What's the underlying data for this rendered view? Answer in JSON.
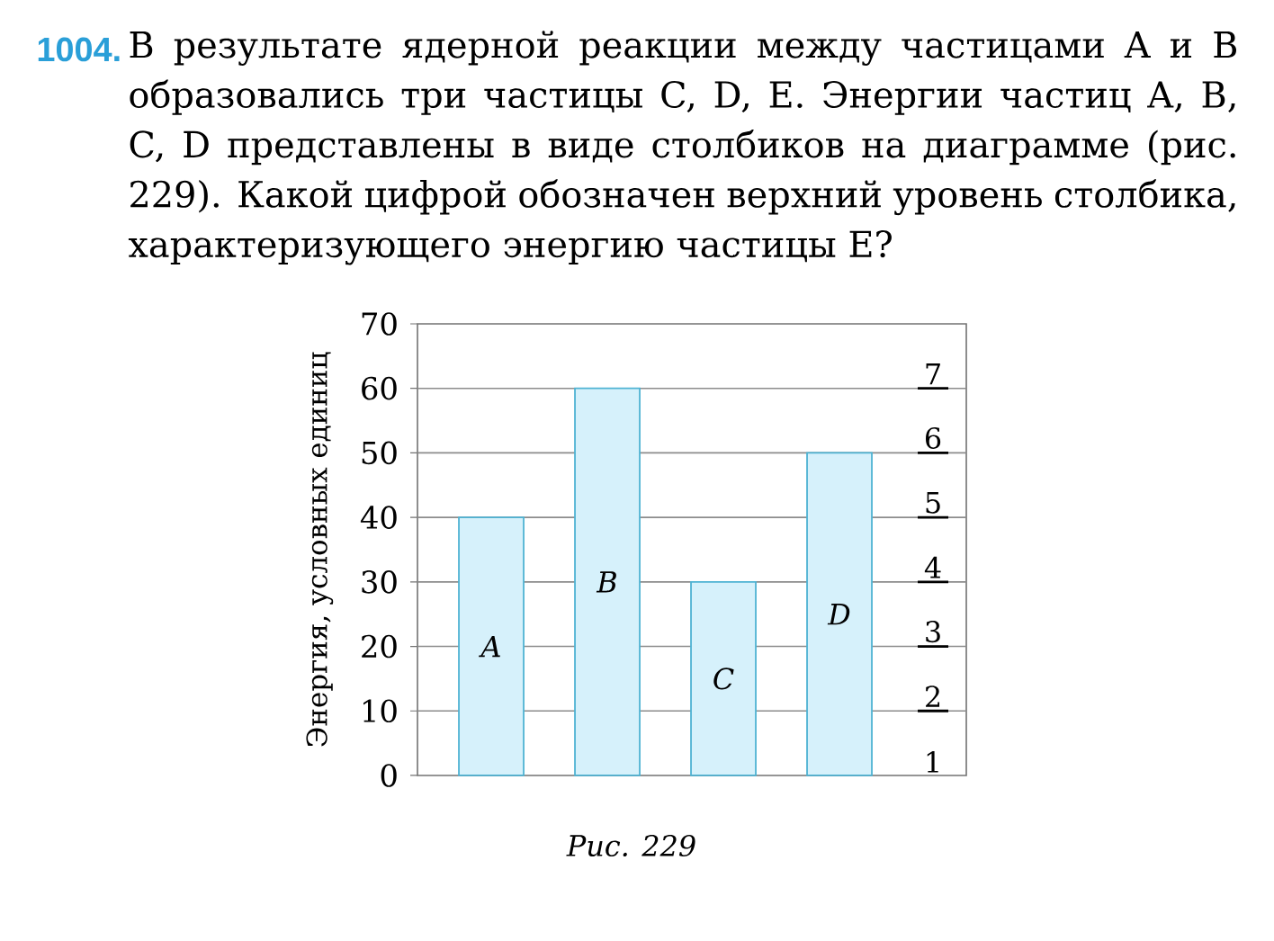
{
  "chart_data": {
    "type": "bar",
    "title": "1004.",
    "subtitle": "В результате ядерной реакции между частицами A и B образовались три частицы C, D, E. Энергии частиц A, B, C, D представлены в виде столбиков на диаграмме (рис. 229). Какой цифрой обозначен верхний уровень столбика, характеризующего энергию частицы E?",
    "ylabel": "Энергия, условных единиц",
    "categories": [
      "A",
      "B",
      "C",
      "D"
    ],
    "values": [
      40,
      60,
      30,
      50
    ],
    "color": "#d6f1fb",
    "ylim": [
      0,
      70
    ],
    "yticks": [
      0,
      10,
      20,
      30,
      40,
      50,
      60,
      70
    ],
    "ref_lines": [
      {
        "axis": "y",
        "value": 10,
        "color": "#8c8c8c"
      },
      {
        "axis": "y",
        "value": 20,
        "color": "#8c8c8c"
      },
      {
        "axis": "y",
        "value": 30,
        "color": "#8c8c8c"
      },
      {
        "axis": "y",
        "value": 40,
        "color": "#8c8c8c"
      },
      {
        "axis": "y",
        "value": 50,
        "color": "#8c8c8c"
      },
      {
        "axis": "y",
        "value": 60,
        "color": "#8c8c8c"
      }
    ],
    "annotations": [
      "1",
      {
        "text": "2",
        "y": 10
      },
      {
        "text": "3",
        "y": 20
      },
      {
        "text": "4",
        "y": 30
      },
      {
        "text": "5",
        "y": 40
      },
      {
        "text": "6",
        "y": 50
      },
      {
        "text": "7",
        "y": 60
      },
      "Рис. 229"
    ]
  }
}
